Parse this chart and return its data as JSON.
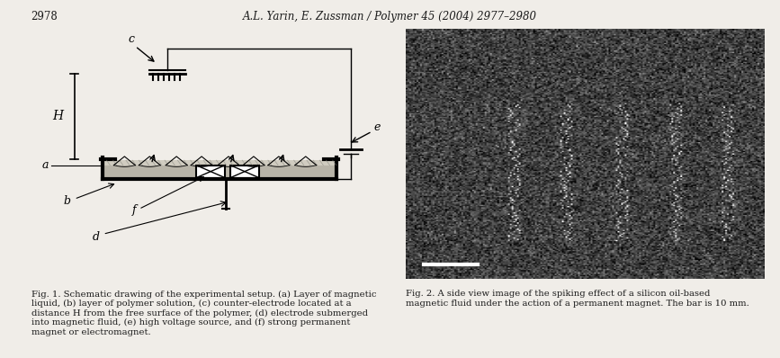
{
  "page_number": "2978",
  "header": "A.L. Yarin, E. Zussman / Polymer 45 (2004) 2977–2980",
  "fig1_caption": "Fig. 1. Schematic drawing of the experimental setup. (a) Layer of magnetic\nliquid, (b) layer of polymer solution, (c) counter-electrode located at a\ndistance H from the free surface of the polymer, (d) electrode submerged\ninto magnetic fluid, (e) high voltage source, and (f) strong permanent\nmagnet or electromagnet.",
  "fig2_caption": "Fig. 2. A side view image of the spiking effect of a silicon oil-based\nmagnetic fluid under the action of a permanent magnet. The bar is 10 mm.",
  "bg_color": "#f0ede8",
  "text_color": "#1a1a1a",
  "diagram_bg": "#ffffff"
}
